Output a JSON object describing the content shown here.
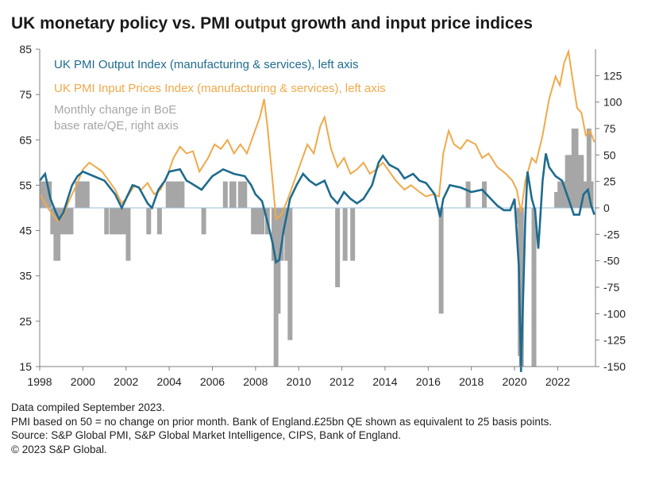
{
  "title": "UK monetary policy vs. PMI output growth and input price indices",
  "legend": {
    "output": "UK PMI Output Index (manufacturing & services), left axis",
    "input": "UK PMI Input Prices Index (manufacturing & services), left axis",
    "boe_line1": "Monthly change in BoE",
    "boe_line2": "base rate/QE, right axis"
  },
  "notes": [
    "Data compiled September 2023.",
    "PMI based on 50 = no change on prior month. Bank of England.£25bn QE shown as equivalent to 25 basis points.",
    "Source: S&P Global PMI, S&P Global Market Intelligence, CIPS, Bank of England.",
    "© 2023 S&P Global."
  ],
  "chart_data": {
    "type": "line",
    "colors": {
      "output": "#1f6b8e",
      "input": "#f0a94a",
      "boe": "#a6a6a6",
      "zero_line": "#9dbcd4",
      "axis": "#7f7f7f"
    },
    "x_range": [
      1998.0,
      2023.75
    ],
    "x_ticks": [
      "1998",
      "2000",
      "2002",
      "2004",
      "2006",
      "2008",
      "2010",
      "2012",
      "2014",
      "2016",
      "2018",
      "2020",
      "2022"
    ],
    "left_axis": {
      "range": [
        15,
        85
      ],
      "ticks": [
        15,
        25,
        35,
        45,
        55,
        65,
        75,
        85
      ]
    },
    "right_axis": {
      "range": [
        -150,
        150
      ],
      "ticks": [
        -150,
        -125,
        -100,
        -75,
        -50,
        -25,
        0,
        25,
        50,
        75,
        100,
        125
      ]
    },
    "series": [
      {
        "name": "UK PMI Output Index (manufacturing & services), left axis",
        "axis": "left",
        "points": [
          [
            1998.0,
            56
          ],
          [
            1998.25,
            57.5
          ],
          [
            1998.5,
            52
          ],
          [
            1998.75,
            49
          ],
          [
            1998.9,
            47.5
          ],
          [
            1999.1,
            49
          ],
          [
            1999.3,
            52
          ],
          [
            1999.5,
            55
          ],
          [
            1999.75,
            57
          ],
          [
            2000.0,
            58
          ],
          [
            2000.5,
            57
          ],
          [
            2001.0,
            56
          ],
          [
            2001.5,
            53
          ],
          [
            2001.8,
            50
          ],
          [
            2002.0,
            52
          ],
          [
            2002.3,
            55
          ],
          [
            2002.6,
            54.5
          ],
          [
            2003.0,
            51
          ],
          [
            2003.2,
            50
          ],
          [
            2003.5,
            54
          ],
          [
            2003.8,
            56
          ],
          [
            2004.0,
            58
          ],
          [
            2004.5,
            58.5
          ],
          [
            2004.8,
            56
          ],
          [
            2005.0,
            55.5
          ],
          [
            2005.5,
            54
          ],
          [
            2006.0,
            57
          ],
          [
            2006.5,
            58.5
          ],
          [
            2007.0,
            57.5
          ],
          [
            2007.5,
            57
          ],
          [
            2007.8,
            55
          ],
          [
            2008.0,
            53
          ],
          [
            2008.3,
            51.5
          ],
          [
            2008.6,
            46
          ],
          [
            2008.8,
            42
          ],
          [
            2008.95,
            38
          ],
          [
            2009.1,
            38.5
          ],
          [
            2009.3,
            45
          ],
          [
            2009.6,
            52
          ],
          [
            2009.9,
            55
          ],
          [
            2010.2,
            57.5
          ],
          [
            2010.5,
            56
          ],
          [
            2010.8,
            55
          ],
          [
            2011.2,
            56
          ],
          [
            2011.5,
            52.5
          ],
          [
            2011.8,
            51
          ],
          [
            2012.1,
            53.5
          ],
          [
            2012.4,
            52
          ],
          [
            2012.7,
            51
          ],
          [
            2013.0,
            52
          ],
          [
            2013.4,
            55
          ],
          [
            2013.7,
            60
          ],
          [
            2013.9,
            61.5
          ],
          [
            2014.2,
            59.5
          ],
          [
            2014.6,
            58.5
          ],
          [
            2014.9,
            56.5
          ],
          [
            2015.3,
            57.5
          ],
          [
            2015.6,
            56
          ],
          [
            2015.9,
            55.5
          ],
          [
            2016.3,
            53
          ],
          [
            2016.55,
            48
          ],
          [
            2016.7,
            52
          ],
          [
            2017.0,
            55
          ],
          [
            2017.5,
            54.5
          ],
          [
            2018.0,
            53.5
          ],
          [
            2018.5,
            54
          ],
          [
            2018.9,
            52
          ],
          [
            2019.2,
            50.5
          ],
          [
            2019.5,
            49.5
          ],
          [
            2019.8,
            49.5
          ],
          [
            2020.0,
            52
          ],
          [
            2020.2,
            37
          ],
          [
            2020.3,
            13.8
          ],
          [
            2020.5,
            48
          ],
          [
            2020.6,
            58
          ],
          [
            2020.8,
            52
          ],
          [
            2020.95,
            49.5
          ],
          [
            2021.1,
            41
          ],
          [
            2021.3,
            56
          ],
          [
            2021.45,
            62
          ],
          [
            2021.6,
            59
          ],
          [
            2021.9,
            57
          ],
          [
            2022.2,
            56
          ],
          [
            2022.5,
            52
          ],
          [
            2022.75,
            48.5
          ],
          [
            2023.0,
            48.5
          ],
          [
            2023.2,
            53
          ],
          [
            2023.4,
            54
          ],
          [
            2023.55,
            50.5
          ],
          [
            2023.7,
            48.5
          ]
        ]
      },
      {
        "name": "UK PMI Input Prices Index (manufacturing & services), left axis",
        "axis": "left",
        "points": [
          [
            1998.0,
            53
          ],
          [
            1998.3,
            50.5
          ],
          [
            1998.6,
            48.5
          ],
          [
            1998.85,
            47
          ],
          [
            1999.1,
            48.5
          ],
          [
            1999.4,
            52
          ],
          [
            1999.7,
            55
          ],
          [
            2000.0,
            58.5
          ],
          [
            2000.3,
            60
          ],
          [
            2000.6,
            59
          ],
          [
            2000.9,
            58
          ],
          [
            2001.2,
            56
          ],
          [
            2001.5,
            54
          ],
          [
            2001.8,
            51
          ],
          [
            2002.0,
            52
          ],
          [
            2002.4,
            55
          ],
          [
            2002.7,
            54
          ],
          [
            2003.0,
            55.5
          ],
          [
            2003.3,
            53
          ],
          [
            2003.6,
            54
          ],
          [
            2003.9,
            57
          ],
          [
            2004.2,
            61
          ],
          [
            2004.5,
            63.5
          ],
          [
            2004.8,
            62
          ],
          [
            2005.1,
            62.5
          ],
          [
            2005.4,
            58
          ],
          [
            2005.8,
            61
          ],
          [
            2006.1,
            64
          ],
          [
            2006.4,
            63
          ],
          [
            2006.7,
            65
          ],
          [
            2007.0,
            62
          ],
          [
            2007.3,
            64
          ],
          [
            2007.6,
            62
          ],
          [
            2007.9,
            66
          ],
          [
            2008.2,
            70
          ],
          [
            2008.4,
            74
          ],
          [
            2008.55,
            68
          ],
          [
            2008.75,
            58
          ],
          [
            2008.95,
            47.5
          ],
          [
            2009.2,
            48.5
          ],
          [
            2009.5,
            52
          ],
          [
            2009.8,
            56
          ],
          [
            2010.1,
            60
          ],
          [
            2010.4,
            64
          ],
          [
            2010.7,
            62
          ],
          [
            2011.0,
            68
          ],
          [
            2011.2,
            70
          ],
          [
            2011.5,
            63
          ],
          [
            2011.8,
            59
          ],
          [
            2012.1,
            61
          ],
          [
            2012.4,
            57.5
          ],
          [
            2012.7,
            58.5
          ],
          [
            2013.0,
            60
          ],
          [
            2013.3,
            57.5
          ],
          [
            2013.6,
            58.5
          ],
          [
            2013.9,
            60
          ],
          [
            2014.2,
            58
          ],
          [
            2014.5,
            56
          ],
          [
            2014.9,
            54
          ],
          [
            2015.2,
            55
          ],
          [
            2015.6,
            53.5
          ],
          [
            2015.9,
            52.5
          ],
          [
            2016.2,
            53
          ],
          [
            2016.5,
            52.5
          ],
          [
            2016.7,
            62
          ],
          [
            2016.95,
            67
          ],
          [
            2017.2,
            64
          ],
          [
            2017.5,
            63
          ],
          [
            2017.8,
            65
          ],
          [
            2018.2,
            64
          ],
          [
            2018.5,
            61
          ],
          [
            2018.8,
            62
          ],
          [
            2019.2,
            59
          ],
          [
            2019.6,
            57.5
          ],
          [
            2019.9,
            56
          ],
          [
            2020.1,
            54
          ],
          [
            2020.3,
            49
          ],
          [
            2020.5,
            56
          ],
          [
            2020.8,
            61
          ],
          [
            2021.0,
            60
          ],
          [
            2021.3,
            66
          ],
          [
            2021.6,
            74
          ],
          [
            2021.9,
            79
          ],
          [
            2022.1,
            77
          ],
          [
            2022.3,
            82
          ],
          [
            2022.5,
            84.5
          ],
          [
            2022.7,
            78
          ],
          [
            2022.9,
            72
          ],
          [
            2023.1,
            71
          ],
          [
            2023.3,
            66
          ],
          [
            2023.5,
            67
          ],
          [
            2023.7,
            64.5
          ]
        ]
      },
      {
        "name": "Monthly change in BoE base rate/QE, right axis",
        "axis": "right",
        "type": "bar",
        "points": [
          [
            1998.1,
            25
          ],
          [
            1998.3,
            25
          ],
          [
            1998.45,
            25
          ],
          [
            1998.6,
            -25
          ],
          [
            1998.75,
            -50
          ],
          [
            1998.85,
            -50
          ],
          [
            1999.0,
            -25
          ],
          [
            1999.15,
            -25
          ],
          [
            1999.3,
            -25
          ],
          [
            1999.45,
            -25
          ],
          [
            1999.75,
            25
          ],
          [
            1999.95,
            25
          ],
          [
            2000.1,
            25
          ],
          [
            2000.2,
            25
          ],
          [
            2001.1,
            -25
          ],
          [
            2001.35,
            -25
          ],
          [
            2001.5,
            -25
          ],
          [
            2001.7,
            -25
          ],
          [
            2001.85,
            -25
          ],
          [
            2002.0,
            -25
          ],
          [
            2002.1,
            -50
          ],
          [
            2003.05,
            -25
          ],
          [
            2003.55,
            -25
          ],
          [
            2003.95,
            25
          ],
          [
            2004.1,
            25
          ],
          [
            2004.3,
            25
          ],
          [
            2004.45,
            25
          ],
          [
            2004.6,
            25
          ],
          [
            2005.6,
            -25
          ],
          [
            2006.6,
            25
          ],
          [
            2006.9,
            25
          ],
          [
            2007.0,
            25
          ],
          [
            2007.3,
            25
          ],
          [
            2007.5,
            25
          ],
          [
            2007.9,
            -25
          ],
          [
            2008.1,
            -25
          ],
          [
            2008.3,
            -25
          ],
          [
            2008.55,
            -25
          ],
          [
            2008.85,
            -50
          ],
          [
            2008.95,
            -150
          ],
          [
            2009.05,
            -100
          ],
          [
            2009.2,
            -50
          ],
          [
            2009.35,
            -25
          ],
          [
            2009.45,
            -50
          ],
          [
            2009.6,
            -125
          ],
          [
            2011.8,
            -75
          ],
          [
            2012.15,
            -50
          ],
          [
            2012.5,
            -50
          ],
          [
            2016.6,
            -100
          ],
          [
            2017.85,
            25
          ],
          [
            2018.6,
            25
          ],
          [
            2020.2,
            -15
          ],
          [
            2020.26,
            -140
          ],
          [
            2020.32,
            -150
          ],
          [
            2020.9,
            -150
          ],
          [
            2021.95,
            15
          ],
          [
            2022.1,
            25
          ],
          [
            2022.2,
            25
          ],
          [
            2022.35,
            25
          ],
          [
            2022.45,
            50
          ],
          [
            2022.6,
            50
          ],
          [
            2022.75,
            75
          ],
          [
            2022.85,
            75
          ],
          [
            2022.95,
            50
          ],
          [
            2023.1,
            50
          ],
          [
            2023.25,
            25
          ],
          [
            2023.45,
            75
          ],
          [
            2023.55,
            25
          ]
        ]
      }
    ]
  }
}
